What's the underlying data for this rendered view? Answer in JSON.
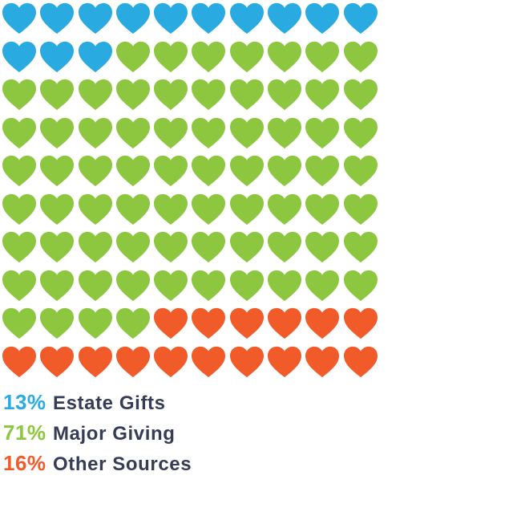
{
  "chart_data": {
    "type": "pictogram",
    "icon": "heart",
    "title": "",
    "grid": {
      "rows": 10,
      "cols": 10,
      "total_icons": 100,
      "fill_order": "row-major-left-to-right-top-to-bottom"
    },
    "categories": [
      "Estate Gifts",
      "Major Giving",
      "Other Sources"
    ],
    "values": [
      13,
      71,
      16
    ],
    "series": [
      {
        "name": "Estate Gifts",
        "value": 13,
        "percent_label": "13%",
        "color": "#29ABE2"
      },
      {
        "name": "Major Giving",
        "value": 71,
        "percent_label": "71%",
        "color": "#8DC63F"
      },
      {
        "name": "Other Sources",
        "value": 16,
        "percent_label": "16%",
        "color": "#F15A29"
      }
    ],
    "legend_position": "bottom-left",
    "label_text_color": "#363C55",
    "background_color": "#FFFFFF"
  }
}
